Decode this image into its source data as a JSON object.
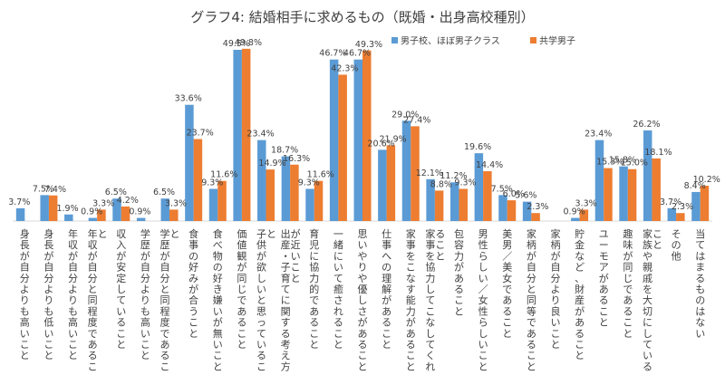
{
  "chart_data": {
    "type": "bar",
    "title": "グラフ4: 結婚相手に求めるもの（既婚・出身高校種別）",
    "xlabel": "",
    "ylabel": "",
    "ylim": [
      0,
      55
    ],
    "grid": false,
    "legend_position": "top-right",
    "categories": [
      "身長が自分よりも高いこと",
      "身長が自分よりも低いこと",
      "年収が自分よりも高いこと",
      "年収が自分と同程度であること",
      "収入が安定していること",
      "学歴が自分よりも高いこと",
      "学歴が自分と同程度であること",
      "食事の好みが合うこと",
      "食べ物の好き嫌いが無いこと",
      "価値観が同じであること",
      "子供が欲しいと思っていること",
      "出産・子育てに関する考え方が近いこと",
      "育児に協力的であること",
      "一緒にいて癒されること",
      "思いやりや優しさがあること",
      "仕事への理解があること",
      "家事をこなす能力があること",
      "家事を協力してこなしてくれること",
      "包容力があること",
      "男性らしい／女性らしいこと",
      "美男／美女であること",
      "家柄が自分と同等であること",
      "家柄が自分より良いこと",
      "貯金など、財産があること",
      "ユーモアがあること",
      "趣味が同じであること",
      "家族や親戚を大切にしていること",
      "その他",
      "当てはまるものはない"
    ],
    "series": [
      {
        "name": "男子校、ほぼ男子クラス",
        "color": "#5b9bd5",
        "values": [
          3.7,
          7.5,
          1.9,
          0.9,
          6.5,
          0.9,
          6.5,
          33.6,
          9.3,
          49.5,
          23.4,
          18.7,
          9.3,
          46.7,
          46.7,
          20.6,
          29.0,
          12.1,
          11.2,
          19.6,
          7.5,
          5.6,
          0.0,
          0.9,
          23.4,
          15.8,
          26.2,
          3.7,
          8.4
        ]
      },
      {
        "name": "共学男子",
        "color": "#ed7d31",
        "values": [
          0.0,
          7.4,
          0.0,
          3.3,
          4.2,
          0.0,
          3.3,
          23.7,
          11.6,
          49.8,
          14.9,
          16.3,
          11.6,
          42.3,
          49.3,
          21.9,
          27.4,
          8.8,
          9.3,
          14.4,
          6.0,
          2.3,
          0.0,
          3.3,
          15.3,
          15.0,
          18.1,
          2.3,
          10.2
        ]
      }
    ],
    "data_labels": [
      [
        "3.7%",
        "7.5%",
        "1.9%",
        "0.9%",
        "6.5%",
        "0.9%",
        "6.5%",
        "33.6%",
        "9.3%",
        "49.5%",
        "23.4%",
        "18.7%",
        "9.3%",
        "46.7%",
        "46.7%",
        "20.6%",
        "29.0%",
        "12.1%",
        "11.2%",
        "19.6%",
        "7.5%",
        "5.6%",
        "",
        "0.9%",
        "23.4%",
        "15.8%",
        "26.2%",
        "3.7%",
        "8.4%"
      ],
      [
        "",
        "7.4%",
        "",
        "3.3%",
        "4.2%",
        "",
        "3.3%",
        "23.7%",
        "11.6%",
        "49.8%",
        "14.9%",
        "16.3%",
        "11.6%",
        "42.3%",
        "49.3%",
        "21.9%",
        "27.4%",
        "8.8%",
        "9.3%",
        "14.4%",
        "6.0%",
        "2.3%",
        "",
        "3.3%",
        "15.3%",
        "15.0%",
        "18.1%",
        "2.3%",
        "10.2%"
      ]
    ]
  }
}
